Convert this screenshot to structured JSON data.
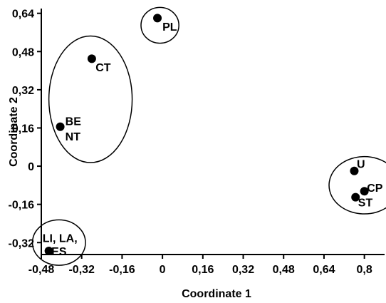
{
  "chart_data": {
    "type": "scatter",
    "xlabel": "Coordinate 1",
    "ylabel": "Coordinate 2",
    "xlim": [
      -0.48,
      0.88
    ],
    "ylim": [
      -0.37,
      0.66
    ],
    "x_ticks": [
      {
        "value": -0.48,
        "label": "-0,48"
      },
      {
        "value": -0.32,
        "label": "-0,32"
      },
      {
        "value": -0.16,
        "label": "-0,16"
      },
      {
        "value": 0,
        "label": "0"
      },
      {
        "value": 0.16,
        "label": "0,16"
      },
      {
        "value": 0.32,
        "label": "0,32"
      },
      {
        "value": 0.48,
        "label": "0,48"
      },
      {
        "value": 0.64,
        "label": "0,64"
      },
      {
        "value": 0.8,
        "label": "0,8"
      }
    ],
    "y_ticks": [
      {
        "value": 0.64,
        "label": "0,64"
      },
      {
        "value": 0.48,
        "label": "0,48"
      },
      {
        "value": 0.32,
        "label": "0,32"
      },
      {
        "value": 0.16,
        "label": "0,16"
      },
      {
        "value": 0,
        "label": "0"
      },
      {
        "value": -0.16,
        "label": "-0,16"
      },
      {
        "value": -0.32,
        "label": "-0,32"
      }
    ],
    "points": [
      {
        "x": -0.02,
        "y": 0.62
      },
      {
        "x": -0.28,
        "y": 0.45
      },
      {
        "x": -0.405,
        "y": 0.165
      },
      {
        "x": 0.76,
        "y": -0.02
      },
      {
        "x": 0.8,
        "y": -0.105
      },
      {
        "x": 0.765,
        "y": -0.13
      },
      {
        "x": -0.45,
        "y": -0.355
      }
    ],
    "labels": [
      {
        "text": "PL",
        "x": 0.0,
        "y": 0.585
      },
      {
        "text": "CT",
        "x": -0.265,
        "y": 0.415
      },
      {
        "text": "BE",
        "x": -0.385,
        "y": 0.19
      },
      {
        "text": "NT",
        "x": -0.385,
        "y": 0.125
      },
      {
        "text": "U",
        "x": 0.77,
        "y": 0.01
      },
      {
        "text": "CP",
        "x": 0.81,
        "y": -0.09
      },
      {
        "text": "ST",
        "x": 0.775,
        "y": -0.15
      },
      {
        "text": "LI, LA,",
        "x": -0.475,
        "y": -0.3
      },
      {
        "text": "ES",
        "x": -0.44,
        "y": -0.355
      }
    ],
    "clusters": [
      {
        "cx": -0.01,
        "cy": 0.59,
        "rx": 0.075,
        "ry": 0.075
      },
      {
        "cx": -0.285,
        "cy": 0.28,
        "rx": 0.165,
        "ry": 0.265
      },
      {
        "cx": 0.8,
        "cy": -0.08,
        "rx": 0.14,
        "ry": 0.12
      },
      {
        "cx": -0.41,
        "cy": -0.32,
        "rx": 0.105,
        "ry": 0.095
      }
    ]
  }
}
